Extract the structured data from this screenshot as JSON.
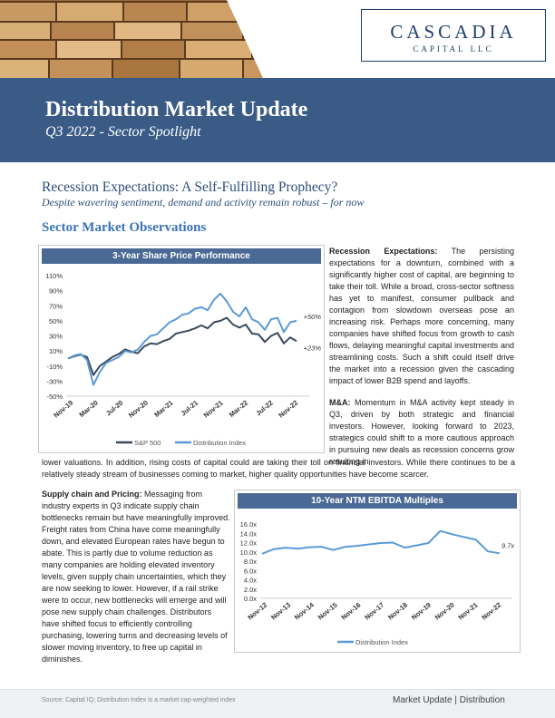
{
  "header": {
    "logo_main": "CASCADIA",
    "logo_sub": "CAPITAL LLC",
    "title": "Distribution Market Update",
    "subtitle": "Q3 2022 - Sector Spotlight"
  },
  "article": {
    "headline": "Recession Expectations:  A Self-Fulfilling Prophecy?",
    "subheadline": "Despite wavering sentiment, demand and activity remain robust – for now",
    "section_title": "Sector Market Observations",
    "recession_label": "Recession Expectations:",
    "recession_text": " The persisting expectations for a downturn, combined with a significantly higher cost of capital, are beginning to take their toll. While a broad, cross-sector softness has yet to manifest, consumer pullback and contagion from slowdown overseas pose an increasing risk. Perhaps more concerning, many companies have shifted focus from growth to cash flows, delaying meaningful capital investments and streamlining costs. Such a shift could itself drive the market into a recession given the cascading impact of lower B2B spend and layoffs.",
    "ma_label": "M&A:",
    "ma_text": " Momentum in M&A activity kept steady in Q3, driven by both strategic and financial investors. However, looking forward to 2023, strategics could shift to a more cautious approach in pursuing new deals as recession concerns grow resulting in",
    "ma_text_cont": "lower valuations. In addition, rising costs of capital could are taking their toll on financial investors. While there continues to be a relatively steady stream of businesses coming to market, higher quality opportunities have become scarcer.",
    "supply_label": "Supply chain and Pricing:",
    "supply_text": " Messaging from industry experts in Q3 indicate supply chain bottlenecks remain but have meaningfully improved. Freight rates from China have come meaningfully down, and elevated European rates have begun to abate. This is partly due to volume reduction as many companies are holding elevated inventory levels, given supply chain uncertainties, which they are now seeking to lower. However, if a rail strike were to occur, new bottlenecks will emerge and will pose new supply chain challenges. Distributors have shifted focus to efficiently controlling purchasing, lowering turns and decreasing levels of slower moving inventory, to free up capital in diminishes."
  },
  "footer": {
    "source": "Source: Capital IQ; Distribution Index is a market cap-weighted index",
    "right": "Market Update | Distribution"
  },
  "colors": {
    "banner": "#3a5b86",
    "sp500": "#3b4a5e",
    "distribution": "#5b9bd5",
    "section_title": "#3a73b5"
  },
  "chart_data": [
    {
      "type": "line",
      "title": "3-Year Share Price Performance",
      "x_ticks": [
        "Nov-19",
        "Mar-20",
        "Jul-20",
        "Nov-20",
        "Mar-21",
        "Jul-21",
        "Nov-21",
        "Mar-22",
        "Jul-22",
        "Nov-22"
      ],
      "y_ticks": [
        "110%",
        "90%",
        "70%",
        "50%",
        "30%",
        "10%",
        "-10%",
        "-30%",
        "-50%"
      ],
      "ylim": [
        -50,
        110
      ],
      "legend_position": "bottom",
      "end_labels": [
        "+50%",
        "+23%"
      ],
      "series": [
        {
          "name": "S&P 500",
          "color": "#3b4a5e",
          "x": [
            "Nov-19",
            "Dec-19",
            "Jan-20",
            "Feb-20",
            "Mar-20",
            "Apr-20",
            "May-20",
            "Jun-20",
            "Jul-20",
            "Aug-20",
            "Sep-20",
            "Oct-20",
            "Nov-20",
            "Dec-20",
            "Jan-21",
            "Feb-21",
            "Mar-21",
            "Apr-21",
            "May-21",
            "Jun-21",
            "Jul-21",
            "Aug-21",
            "Sep-21",
            "Oct-21",
            "Nov-21",
            "Dec-21",
            "Jan-22",
            "Feb-22",
            "Mar-22",
            "Apr-22",
            "May-22",
            "Jun-22",
            "Jul-22",
            "Aug-22",
            "Sep-22",
            "Oct-22",
            "Nov-22"
          ],
          "values": [
            0,
            3,
            5,
            2,
            -22,
            -10,
            -4,
            2,
            6,
            12,
            9,
            7,
            16,
            20,
            19,
            23,
            26,
            33,
            35,
            37,
            40,
            44,
            40,
            48,
            50,
            54,
            45,
            41,
            45,
            33,
            32,
            22,
            30,
            34,
            20,
            28,
            23
          ]
        },
        {
          "name": "Distribution Index",
          "color": "#5b9bd5",
          "x": [
            "Nov-19",
            "Dec-19",
            "Jan-20",
            "Feb-20",
            "Mar-20",
            "Apr-20",
            "May-20",
            "Jun-20",
            "Jul-20",
            "Aug-20",
            "Sep-20",
            "Oct-20",
            "Nov-20",
            "Dec-20",
            "Jan-21",
            "Feb-21",
            "Mar-21",
            "Apr-21",
            "May-21",
            "Jun-21",
            "Jul-21",
            "Aug-21",
            "Sep-21",
            "Oct-21",
            "Nov-21",
            "Dec-21",
            "Jan-22",
            "Feb-22",
            "Mar-22",
            "Apr-22",
            "May-22",
            "Jun-22",
            "Jul-22",
            "Aug-22",
            "Sep-22",
            "Oct-22",
            "Nov-22"
          ],
          "values": [
            0,
            4,
            6,
            -2,
            -35,
            -18,
            -6,
            -2,
            2,
            10,
            8,
            12,
            22,
            30,
            32,
            40,
            48,
            52,
            58,
            60,
            66,
            68,
            64,
            78,
            86,
            76,
            62,
            56,
            68,
            52,
            48,
            38,
            52,
            54,
            35,
            48,
            50
          ]
        }
      ]
    },
    {
      "type": "line",
      "title": "10-Year NTM EBITDA Multiples",
      "x_ticks": [
        "Nov-12",
        "Nov-13",
        "Nov-14",
        "Nov-15",
        "Nov-16",
        "Nov-17",
        "Nov-18",
        "Nov-19",
        "Nov-20",
        "Nov-21",
        "Nov-22"
      ],
      "y_ticks": [
        "16.0x",
        "14.0x",
        "12.0x",
        "10.0x",
        "8.0x",
        "6.0x",
        "4.0x",
        "2.0x",
        "0.0x"
      ],
      "ylim": [
        0,
        16
      ],
      "legend_position": "bottom",
      "end_label": "9.7x",
      "series": [
        {
          "name": "Distribution Index",
          "color": "#5b9bd5",
          "x": [
            "Nov-12",
            "May-13",
            "Nov-13",
            "May-14",
            "Nov-14",
            "May-15",
            "Nov-15",
            "May-16",
            "Nov-16",
            "May-17",
            "Nov-17",
            "May-18",
            "Nov-18",
            "May-19",
            "Nov-19",
            "May-20",
            "Nov-20",
            "May-21",
            "Nov-21",
            "May-22",
            "Nov-22"
          ],
          "values": [
            9.6,
            10.6,
            10.9,
            10.7,
            11.0,
            11.1,
            10.4,
            11.1,
            11.3,
            11.6,
            11.9,
            12.0,
            10.9,
            11.4,
            11.9,
            14.5,
            13.8,
            13.2,
            12.6,
            10.1,
            9.7
          ]
        }
      ]
    }
  ]
}
